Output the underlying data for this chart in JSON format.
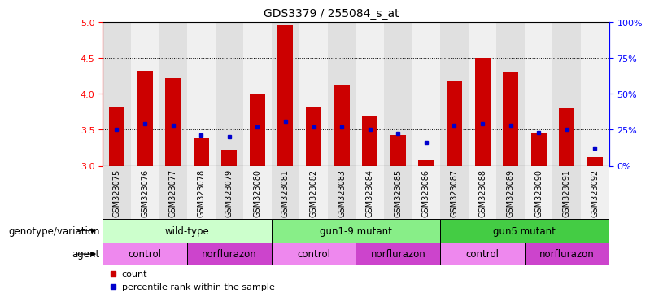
{
  "title": "GDS3379 / 255084_s_at",
  "samples": [
    "GSM323075",
    "GSM323076",
    "GSM323077",
    "GSM323078",
    "GSM323079",
    "GSM323080",
    "GSM323081",
    "GSM323082",
    "GSM323083",
    "GSM323084",
    "GSM323085",
    "GSM323086",
    "GSM323087",
    "GSM323088",
    "GSM323089",
    "GSM323090",
    "GSM323091",
    "GSM323092"
  ],
  "counts": [
    3.82,
    4.32,
    4.22,
    3.38,
    3.22,
    4.0,
    4.95,
    3.82,
    4.12,
    3.7,
    3.43,
    3.08,
    4.18,
    4.5,
    4.3,
    3.45,
    3.8,
    3.12
  ],
  "percentile_ranks": [
    3.5,
    3.58,
    3.56,
    3.43,
    3.4,
    3.54,
    3.62,
    3.54,
    3.54,
    3.5,
    3.45,
    3.32,
    3.56,
    3.58,
    3.56,
    3.46,
    3.5,
    3.24
  ],
  "ylim": [
    3.0,
    5.0
  ],
  "yticks": [
    3.0,
    3.5,
    4.0,
    4.5,
    5.0
  ],
  "right_yticks": [
    0,
    25,
    50,
    75,
    100
  ],
  "bar_color": "#cc0000",
  "dot_color": "#0000cc",
  "bar_width": 0.55,
  "col_bg_even": "#e0e0e0",
  "col_bg_odd": "#f0f0f0",
  "genotype_groups": [
    {
      "label": "wild-type",
      "start": 0,
      "end": 6,
      "color": "#ccffcc"
    },
    {
      "label": "gun1-9 mutant",
      "start": 6,
      "end": 12,
      "color": "#88ee88"
    },
    {
      "label": "gun5 mutant",
      "start": 12,
      "end": 18,
      "color": "#44cc44"
    }
  ],
  "agent_groups": [
    {
      "label": "control",
      "start": 0,
      "end": 3,
      "color": "#ee88ee"
    },
    {
      "label": "norflurazon",
      "start": 3,
      "end": 6,
      "color": "#cc44cc"
    },
    {
      "label": "control",
      "start": 6,
      "end": 9,
      "color": "#ee88ee"
    },
    {
      "label": "norflurazon",
      "start": 9,
      "end": 12,
      "color": "#cc44cc"
    },
    {
      "label": "control",
      "start": 12,
      "end": 15,
      "color": "#ee88ee"
    },
    {
      "label": "norflurazon",
      "start": 15,
      "end": 18,
      "color": "#cc44cc"
    }
  ],
  "legend_count_label": "count",
  "legend_pct_label": "percentile rank within the sample",
  "dotted_lines": [
    3.5,
    4.0,
    4.5
  ],
  "xlabel_fontsize": 7,
  "title_fontsize": 10,
  "tick_fontsize": 8,
  "label_fontsize": 8.5,
  "row_label_fontsize": 8.5
}
